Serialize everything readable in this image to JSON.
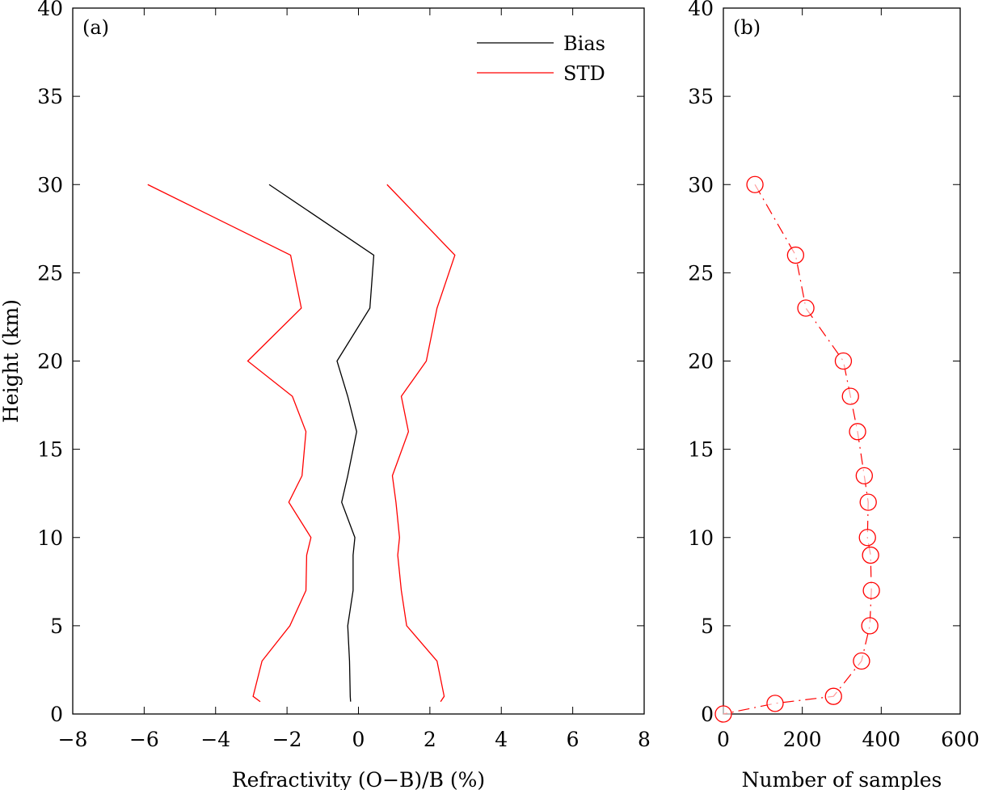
{
  "chart_data": [
    {
      "type": "line",
      "panel_label": "(a)",
      "xlabel": "Refractivity (O−B)/B (%)",
      "ylabel": "Height (km)",
      "xlim": [
        -8,
        8
      ],
      "ylim": [
        0,
        40
      ],
      "xticks": [
        -8,
        -6,
        -4,
        -2,
        0,
        2,
        4,
        6,
        8
      ],
      "xtick_labels": [
        "−8",
        "−6",
        "−4",
        "−2",
        "0",
        "2",
        "4",
        "6",
        "8"
      ],
      "yticks": [
        0,
        5,
        10,
        15,
        20,
        25,
        30,
        35,
        40
      ],
      "ytick_labels": [
        "0",
        "5",
        "10",
        "15",
        "20",
        "25",
        "30",
        "35",
        "40"
      ],
      "legend_position": "top-right",
      "height": [
        30,
        26,
        23,
        20,
        18,
        16,
        13.5,
        12,
        10,
        9,
        7,
        5,
        3,
        1,
        0.7
      ],
      "series": [
        {
          "name": "Bias",
          "color": "#000000",
          "values": [
            -2.5,
            0.43,
            0.32,
            -0.6,
            -0.3,
            -0.05,
            -0.3,
            -0.47,
            -0.1,
            -0.15,
            -0.15,
            -0.3,
            -0.25,
            -0.23,
            -0.22
          ]
        },
        {
          "name": "STD",
          "color": "#ff0000",
          "lower": [
            -5.9,
            -1.9,
            -1.6,
            -3.1,
            -1.85,
            -1.47,
            -1.58,
            -1.95,
            -1.33,
            -1.45,
            -1.47,
            -1.92,
            -2.7,
            -2.95,
            -2.75
          ],
          "upper": [
            0.8,
            2.7,
            2.2,
            1.9,
            1.2,
            1.4,
            0.95,
            1.05,
            1.15,
            1.1,
            1.2,
            1.35,
            2.2,
            2.4,
            2.3
          ]
        }
      ]
    },
    {
      "type": "line",
      "panel_label": "(b)",
      "xlabel": "Number of samples",
      "ylabel": "",
      "xlim": [
        0,
        600
      ],
      "ylim": [
        0,
        40
      ],
      "xticks": [
        0,
        200,
        400,
        600
      ],
      "xtick_labels": [
        "0",
        "200",
        "400",
        "600"
      ],
      "yticks": [
        0,
        5,
        10,
        15,
        20,
        25,
        30,
        35,
        40
      ],
      "ytick_labels": [
        "0",
        "5",
        "10",
        "15",
        "20",
        "25",
        "30",
        "35",
        "40"
      ],
      "series": [
        {
          "name": "samples",
          "color": "#ff0000",
          "marker": "circle",
          "linestyle": "dash-dot",
          "x": [
            80,
            183,
            209,
            304,
            322,
            340,
            357,
            367,
            365,
            373,
            375,
            371,
            350,
            279,
            131,
            0
          ],
          "y": [
            30,
            26,
            23,
            20,
            18,
            16,
            13.5,
            12,
            10,
            9,
            7,
            5,
            3,
            1,
            0.6,
            0
          ]
        }
      ]
    }
  ]
}
